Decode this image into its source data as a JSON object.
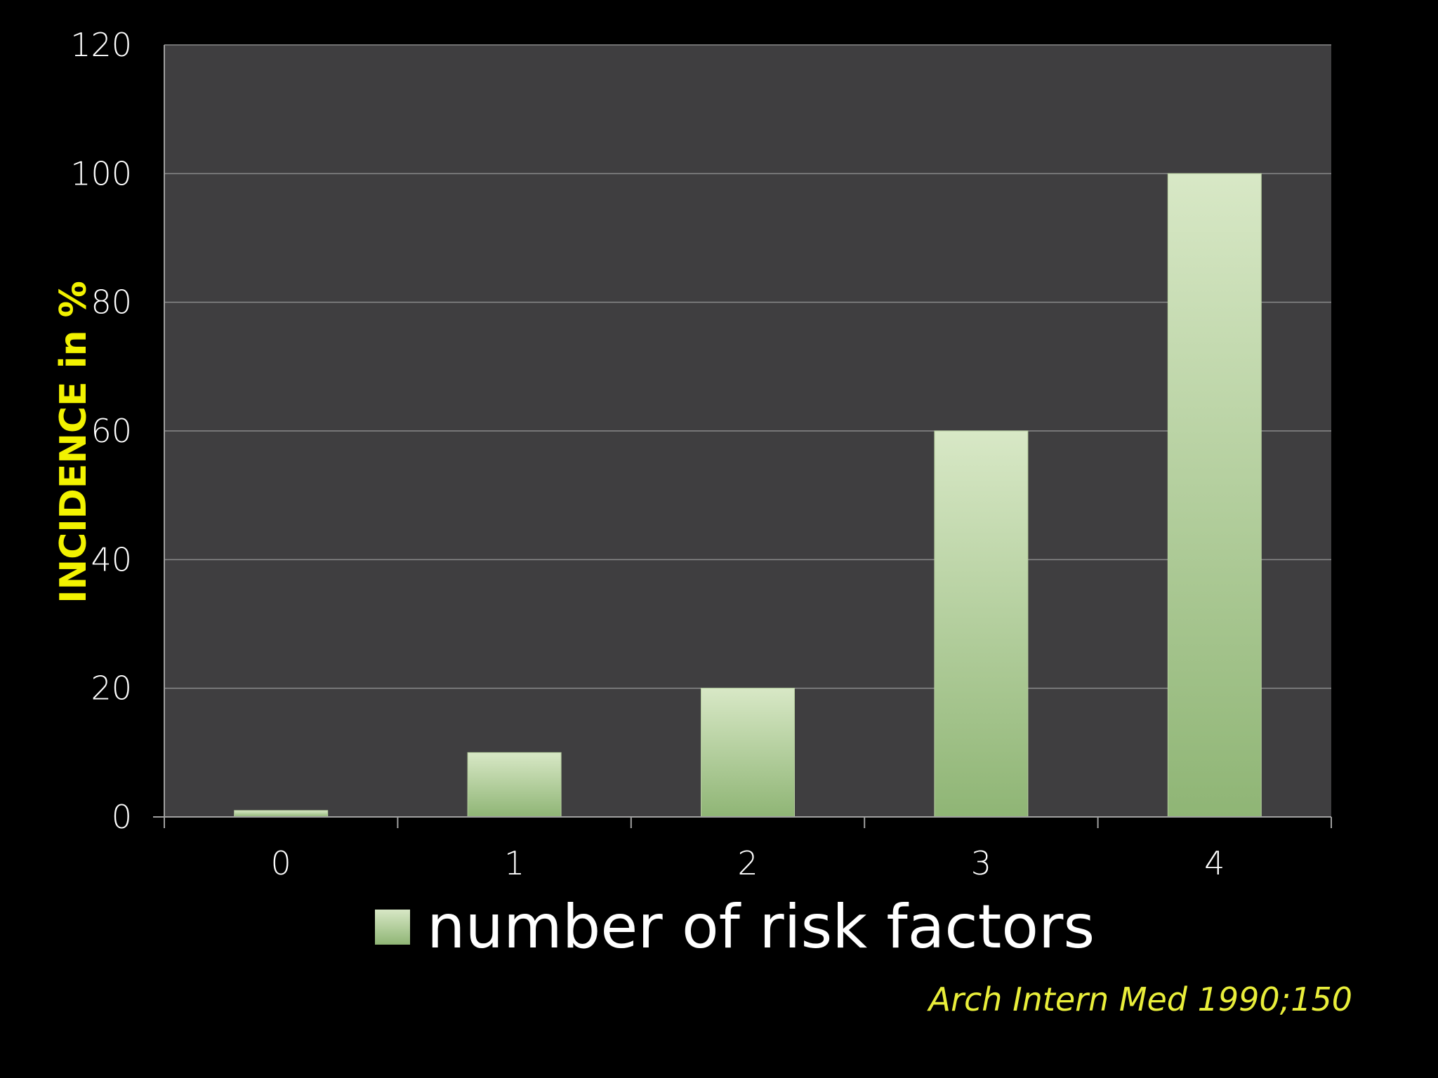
{
  "chart_data": {
    "type": "bar",
    "title": "",
    "xlabel": "",
    "ylabel": "INCIDENCE in %",
    "categories": [
      "0",
      "1",
      "2",
      "3",
      "4"
    ],
    "series": [
      {
        "name": "number of risk factors",
        "values": [
          1,
          10,
          20,
          60,
          100
        ]
      }
    ],
    "ylim": [
      0,
      120
    ],
    "yticks": [
      "0",
      "20",
      "40",
      "60",
      "80",
      "100",
      "120"
    ],
    "grid": true,
    "legend": "bottom-center",
    "colors": {
      "background": "#000000",
      "plot_background": "#3f3e40",
      "bar_top": "#d8e8c6",
      "bar_bottom": "#8fb575",
      "gridline": "#8a8a8a",
      "axis_label": "#f2f200",
      "source": "#e9ee3a"
    }
  },
  "source": "Arch Intern Med 1990;150"
}
